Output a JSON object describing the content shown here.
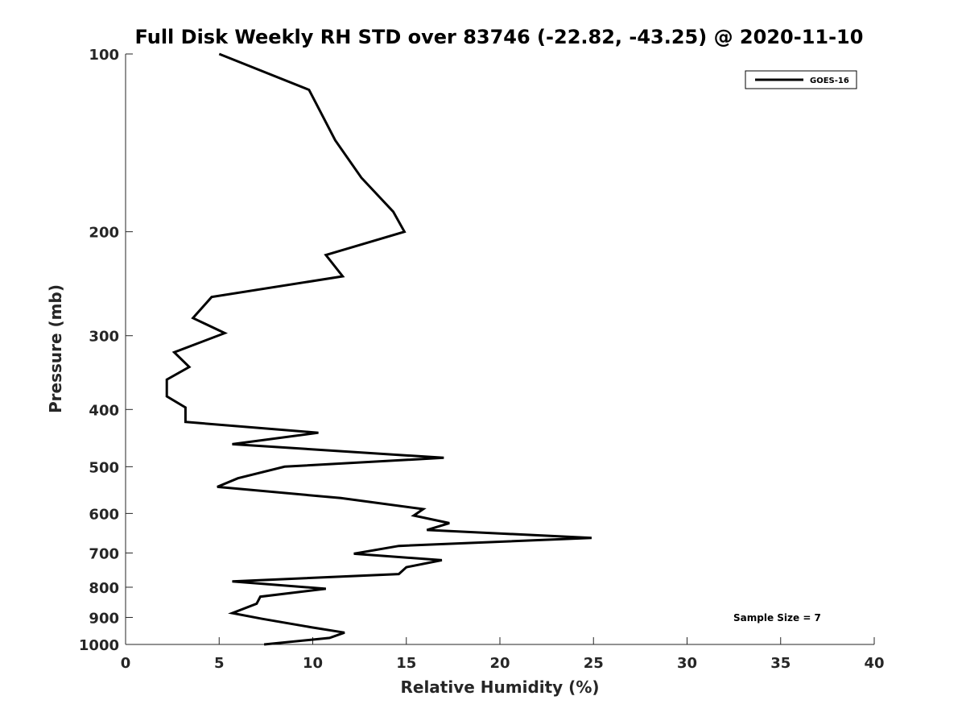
{
  "chart_data": {
    "type": "line",
    "title": "Full Disk Weekly RH STD over 83746 (-22.82, -43.25) @ 2020-11-10",
    "xlabel": "Relative Humidity (%)",
    "ylabel": "Pressure (mb)",
    "xlim": [
      0,
      40
    ],
    "ylim": [
      1000,
      100
    ],
    "y_scale": "log",
    "grid": false,
    "legend_position": "top-right",
    "x_ticks": [
      "0",
      "5",
      "10",
      "15",
      "20",
      "25",
      "30",
      "35",
      "40"
    ],
    "y_ticks": [
      "100",
      "200",
      "300",
      "400",
      "500",
      "600",
      "700",
      "800",
      "900",
      "1000"
    ],
    "annotation": "Sample Size = 7",
    "series": [
      {
        "name": "GOES-16",
        "color": "#000000",
        "x": [
          5.0,
          9.8,
          11.2,
          12.6,
          14.3,
          14.9,
          10.7,
          11.6,
          4.6,
          3.6,
          5.3,
          2.6,
          3.4,
          2.2,
          2.2,
          3.2,
          3.2,
          10.3,
          5.7,
          17.0,
          8.5,
          6.0,
          4.9,
          11.5,
          15.9,
          15.4,
          17.3,
          16.1,
          24.9,
          14.6,
          12.2,
          16.9,
          15.0,
          14.6,
          5.7,
          10.7,
          7.2,
          7.0,
          5.7,
          7.3,
          9.9,
          11.7,
          10.9,
          7.4
        ],
        "y": [
          100,
          115,
          140,
          162,
          185,
          200,
          219,
          238,
          258,
          280,
          297,
          320,
          339,
          356,
          380,
          397,
          420,
          438,
          458,
          483,
          500,
          523,
          541,
          565,
          590,
          605,
          623,
          640,
          660,
          681,
          702,
          720,
          740,
          760,
          782,
          805,
          830,
          853,
          885,
          905,
          935,
          955,
          975,
          1000
        ]
      }
    ]
  }
}
